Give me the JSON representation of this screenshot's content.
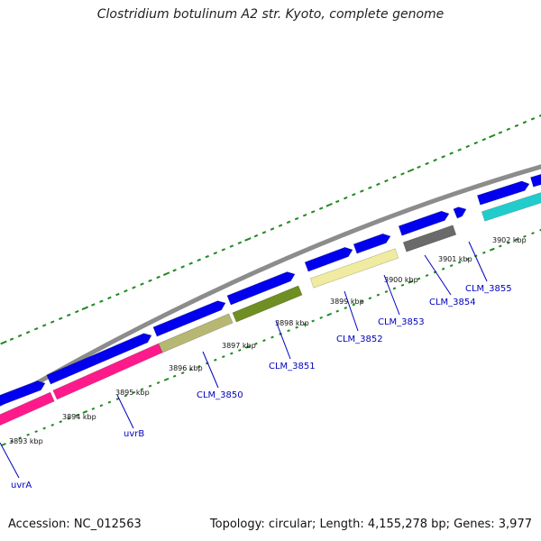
{
  "title": "Clostridium botulinum A2 str. Kyoto, complete genome",
  "accession": "Accession: NC_012563",
  "summary": "Topology: circular; Length: 4,155,278 bp; Genes: 3,977",
  "colors": {
    "backbone": "#8c8c8c",
    "gene_arrow": "#0000ee",
    "tick": "#1f8a1f",
    "label": "#0000c0",
    "uvrB_cds": "#ff1a8c",
    "CLM_3850_cds": "#b7b774",
    "CLM_3851_cds": "#6f8f22",
    "CLM_3852_cds": "#f0eba0",
    "CLM_3854_cds": "#6a6a6a",
    "CLM_3855_cds": "#22cccc"
  },
  "kbp_labels": [
    "3893 kbp",
    "3894 kbp",
    "3895 kbp",
    "3896 kbp",
    "3897 kbp",
    "3898 kbp",
    "3899 kbp",
    "3900 kbp",
    "3901 kbp",
    "3902 kbp"
  ],
  "gene_labels": [
    "uvrA",
    "uvrB",
    "CLM_3850",
    "CLM_3851",
    "CLM_3852",
    "CLM_3853",
    "CLM_3854",
    "CLM_3855"
  ]
}
